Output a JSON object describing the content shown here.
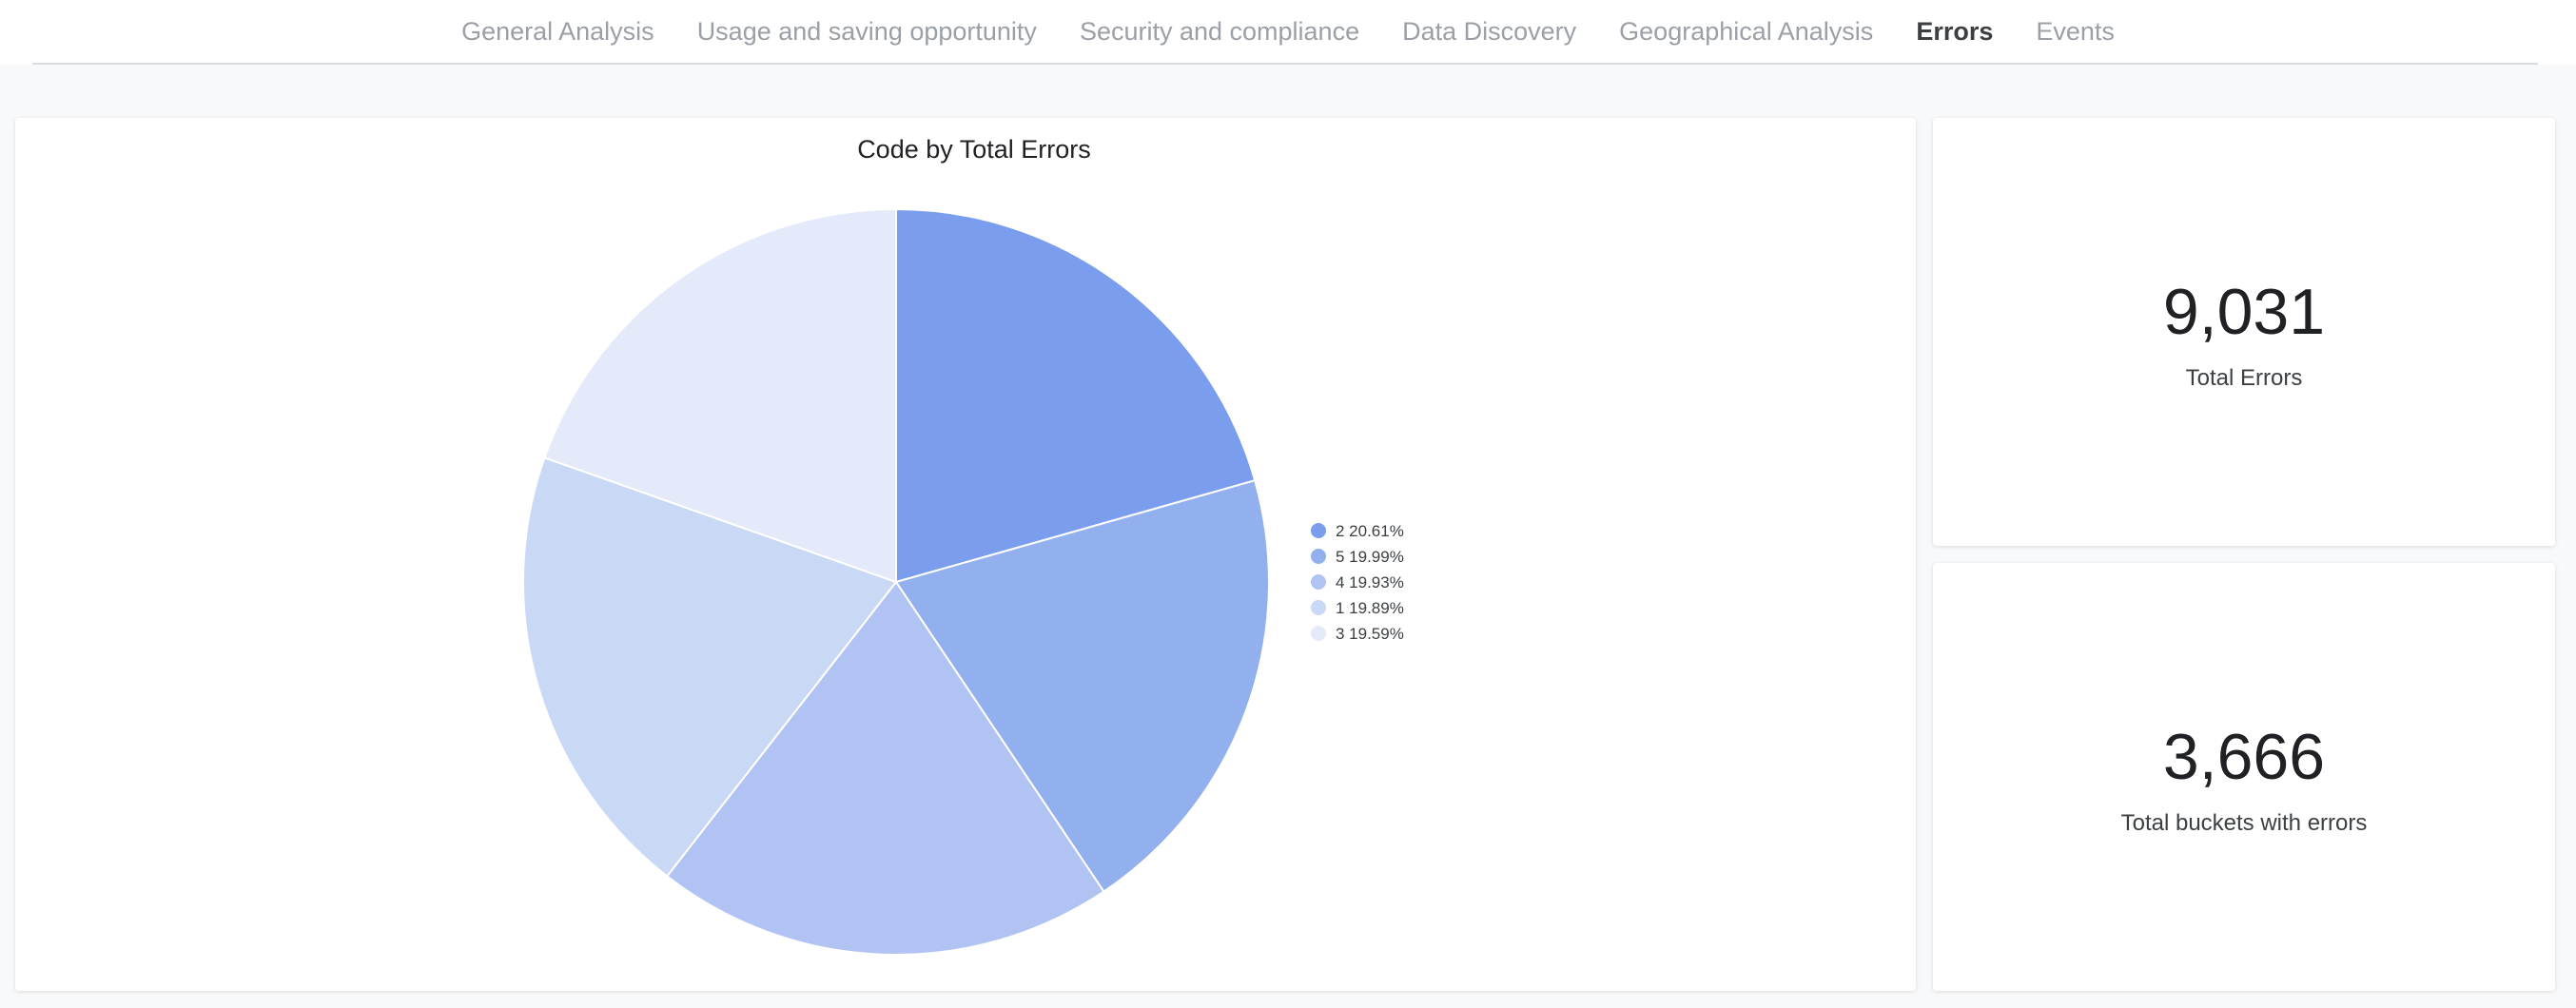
{
  "nav": {
    "tabs": [
      {
        "label": "General Analysis",
        "active": false
      },
      {
        "label": "Usage and saving opportunity",
        "active": false
      },
      {
        "label": "Security and compliance",
        "active": false
      },
      {
        "label": "Data Discovery",
        "active": false
      },
      {
        "label": "Geographical Analysis",
        "active": false
      },
      {
        "label": "Errors",
        "active": true
      },
      {
        "label": "Events",
        "active": false
      }
    ]
  },
  "chart_data": {
    "type": "pie",
    "title": "Code by Total Errors",
    "categories": [
      "2",
      "5",
      "4",
      "1",
      "3"
    ],
    "values": [
      20.61,
      19.99,
      19.93,
      19.89,
      19.59
    ],
    "legend_labels": [
      "2 20.61%",
      "5 19.99%",
      "4 19.93%",
      "1 19.89%",
      "3 19.59%"
    ],
    "colors": [
      "#7b9ded",
      "#93b0ee",
      "#b0c3f3",
      "#c9d8f5",
      "#e4eafa"
    ],
    "legend_position": "right"
  },
  "kpis": {
    "total_errors": {
      "value": "9,031",
      "label": "Total Errors"
    },
    "buckets_with_errors": {
      "value": "3,666",
      "label": "Total buckets with errors"
    }
  }
}
